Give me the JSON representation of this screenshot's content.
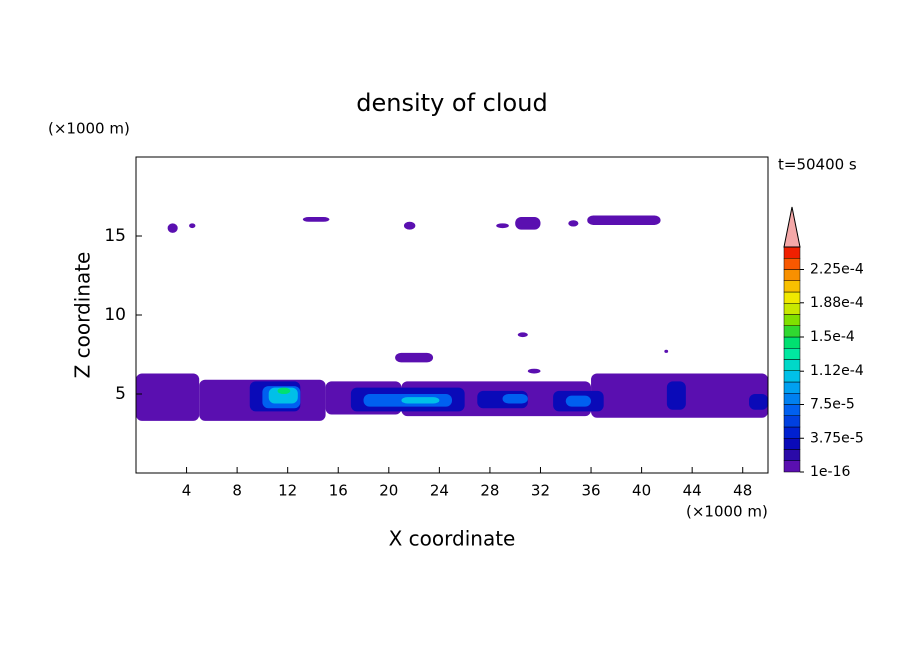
{
  "chart_data": {
    "type": "contour",
    "title": "density of cloud",
    "x_label": "X coordinate",
    "y_label": "Z coordinate",
    "x_unit_label": "(×1000 m)",
    "y_unit_label": "(×1000 m)",
    "time_label": "t=50400 s",
    "xlim": [
      0,
      50
    ],
    "xticks": [
      4,
      8,
      12,
      16,
      20,
      24,
      28,
      32,
      36,
      40,
      44,
      48
    ],
    "ylim": [
      0,
      20
    ],
    "yticks": [
      5,
      10,
      15
    ],
    "colorbar": {
      "lim": [
        1e-16,
        0.00025
      ],
      "ticks": [
        1e-16,
        {
          "value": 3.75e-05,
          "label": "3.75e-5"
        },
        {
          "value": 7.5e-05,
          "label": "7.5e-5"
        },
        {
          "value": 0.000112,
          "label": "1.12e-4"
        },
        {
          "value": 0.00015,
          "label": "1.5e-4"
        },
        {
          "value": 0.000188,
          "label": "1.88e-4"
        },
        {
          "value": 0.000225,
          "label": "2.25e-4"
        }
      ],
      "colors": [
        "#5a0fb0",
        "#2a0aa8",
        "#0a0ab8",
        "#0020d0",
        "#0040e0",
        "#0060f0",
        "#0080f0",
        "#00a0f0",
        "#00c0e8",
        "#00d8c8",
        "#00e8a0",
        "#00e070",
        "#30d830",
        "#80e000",
        "#c8e800",
        "#f0e800",
        "#f8c000",
        "#f89000",
        "#f85800",
        "#f02000"
      ],
      "over_color": "#f4a8a8"
    },
    "regions": [
      {
        "x": [
          0,
          5
        ],
        "z": [
          3.3,
          6.3
        ],
        "value": 5e-06
      },
      {
        "x": [
          5,
          15
        ],
        "z": [
          3.3,
          5.9
        ],
        "value": 5e-06
      },
      {
        "x": [
          15,
          21
        ],
        "z": [
          3.7,
          5.8
        ],
        "value": 5e-06
      },
      {
        "x": [
          21,
          36
        ],
        "z": [
          3.6,
          5.8
        ],
        "value": 5e-06
      },
      {
        "x": [
          36,
          50
        ],
        "z": [
          3.5,
          6.3
        ],
        "value": 5e-06
      },
      {
        "x": [
          2.5,
          3.3
        ],
        "z": [
          15.2,
          15.8
        ],
        "value": 5e-06
      },
      {
        "x": [
          4.2,
          4.7
        ],
        "z": [
          15.5,
          15.8
        ],
        "value": 5e-06
      },
      {
        "x": [
          13.2,
          15.3
        ],
        "z": [
          15.9,
          16.2
        ],
        "value": 5e-06
      },
      {
        "x": [
          21.2,
          22.1
        ],
        "z": [
          15.4,
          15.9
        ],
        "value": 5e-06
      },
      {
        "x": [
          28.5,
          29.5
        ],
        "z": [
          15.5,
          15.8
        ],
        "value": 5e-06
      },
      {
        "x": [
          30,
          32
        ],
        "z": [
          15.4,
          16.2
        ],
        "value": 5e-06
      },
      {
        "x": [
          34.2,
          35
        ],
        "z": [
          15.6,
          16
        ],
        "value": 5e-06
      },
      {
        "x": [
          35.7,
          41.5
        ],
        "z": [
          15.7,
          16.3
        ],
        "value": 5e-06
      },
      {
        "x": [
          20.5,
          23.5
        ],
        "z": [
          7,
          7.6
        ],
        "value": 5e-06
      },
      {
        "x": [
          30.2,
          31
        ],
        "z": [
          8.6,
          8.9
        ],
        "value": 5e-06
      },
      {
        "x": [
          31,
          32
        ],
        "z": [
          6.3,
          6.6
        ],
        "value": 5e-06
      },
      {
        "x": [
          41.8,
          42.1
        ],
        "z": [
          7.6,
          7.8
        ],
        "value": 5e-06
      },
      {
        "x": [
          9,
          13
        ],
        "z": [
          3.9,
          5.8
        ],
        "value": 3e-05
      },
      {
        "x": [
          17,
          26
        ],
        "z": [
          3.9,
          5.4
        ],
        "value": 3e-05
      },
      {
        "x": [
          27,
          31
        ],
        "z": [
          4.1,
          5.2
        ],
        "value": 3e-05
      },
      {
        "x": [
          33,
          37
        ],
        "z": [
          3.9,
          5.2
        ],
        "value": 3e-05
      },
      {
        "x": [
          42,
          43.5
        ],
        "z": [
          4,
          5.8
        ],
        "value": 3e-05
      },
      {
        "x": [
          48.5,
          50
        ],
        "z": [
          4,
          5
        ],
        "value": 3e-05
      },
      {
        "x": [
          10,
          13
        ],
        "z": [
          4.1,
          5.5
        ],
        "value": 7e-05
      },
      {
        "x": [
          18,
          25
        ],
        "z": [
          4.2,
          5
        ],
        "value": 7e-05
      },
      {
        "x": [
          29,
          31
        ],
        "z": [
          4.4,
          5
        ],
        "value": 7e-05
      },
      {
        "x": [
          34,
          36
        ],
        "z": [
          4.2,
          4.9
        ],
        "value": 7e-05
      },
      {
        "x": [
          10.5,
          12.8
        ],
        "z": [
          4.4,
          5.4
        ],
        "value": 0.00011
      },
      {
        "x": [
          21,
          24
        ],
        "z": [
          4.4,
          4.8
        ],
        "value": 0.00011
      },
      {
        "x": [
          11.2,
          12.2
        ],
        "z": [
          5,
          5.4
        ],
        "value": 0.00014
      }
    ]
  }
}
